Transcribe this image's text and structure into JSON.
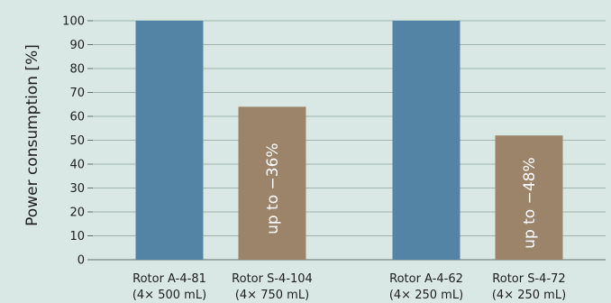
{
  "chart_data": {
    "type": "bar",
    "ylabel": "Power consumption [%]",
    "ylim": [
      0,
      100
    ],
    "yticks": [
      0,
      10,
      20,
      30,
      40,
      50,
      60,
      70,
      80,
      90,
      100
    ],
    "grid": true,
    "categories": [
      {
        "line1": "Rotor A-4-81",
        "line2": "(4× 500 mL)"
      },
      {
        "line1": "Rotor S-4-104",
        "line2": "(4× 750 mL)"
      },
      {
        "line1": "Rotor A-4-62",
        "line2": "(4× 250 mL)"
      },
      {
        "line1": "Rotor S-4-72",
        "line2": "(4× 250 mL)"
      }
    ],
    "values": [
      100,
      64,
      100,
      52
    ],
    "colors": [
      "#5384a6",
      "#9b8469",
      "#5384a6",
      "#9b8469"
    ],
    "annotations": [
      "",
      "up to −36%",
      "",
      "up to −48%"
    ]
  }
}
